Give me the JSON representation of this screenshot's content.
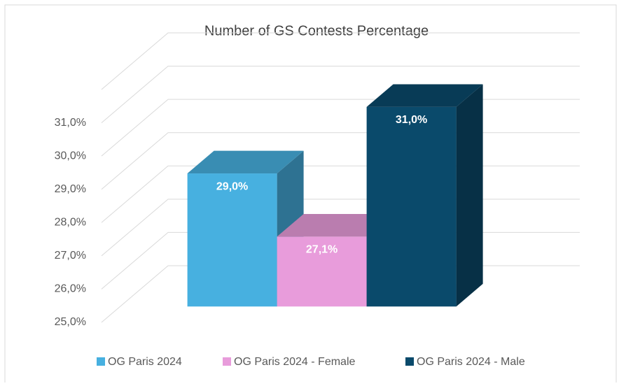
{
  "chart_data": {
    "type": "bar3d",
    "title": "Number of GS Contests Percentage",
    "series": [
      {
        "name": "OG Paris 2024",
        "color": "#47b0e0",
        "values": [
          29.0
        ],
        "value_labels": [
          "29,0%"
        ]
      },
      {
        "name": "OG Paris 2024 - Female",
        "color": "#e89cdb",
        "values": [
          27.1
        ],
        "value_labels": [
          "27,1%"
        ]
      },
      {
        "name": "OG Paris 2024 - Male",
        "color": "#0a4a6b",
        "values": [
          31.0
        ],
        "value_labels": [
          "31,0%"
        ]
      }
    ],
    "ylim": [
      25,
      32
    ],
    "yticks": [
      {
        "value": 25,
        "label": "25,0%"
      },
      {
        "value": 26,
        "label": "26,0%"
      },
      {
        "value": 27,
        "label": "27,0%"
      },
      {
        "value": 28,
        "label": "28,0%"
      },
      {
        "value": 29,
        "label": "29,0%"
      },
      {
        "value": 30,
        "label": "30,0%"
      },
      {
        "value": 31,
        "label": "31,0%"
      }
    ],
    "grid": true,
    "legend": "bottom"
  }
}
